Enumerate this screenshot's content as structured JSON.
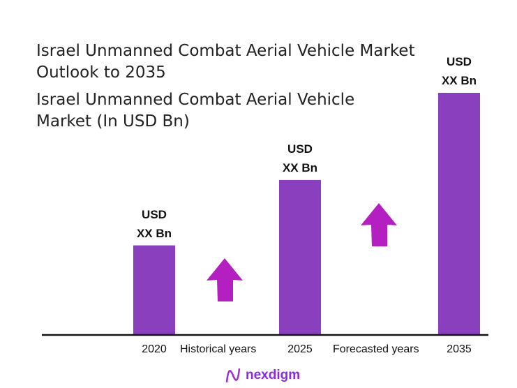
{
  "chart_data": {
    "type": "bar",
    "title": "Israel Unmanned Combat Aerial Vehicle Market Outlook to 2035",
    "subtitle": "Israel Unmanned Combat Aerial Vehicle Market (In USD Bn)",
    "categories": [
      "2020",
      "2025",
      "2035"
    ],
    "values": [
      37,
      64,
      100
    ],
    "data_labels": [
      "USD XX Bn",
      "USD XX Bn",
      "USD XX Bn"
    ],
    "annotations": [
      "Historical years",
      "Forecasted years"
    ],
    "grid": false,
    "colors": {
      "bar": "#8A3FBF",
      "arrow": "#B31FC1",
      "axis": "#111111"
    }
  },
  "logo": {
    "text": "nexdigm"
  }
}
